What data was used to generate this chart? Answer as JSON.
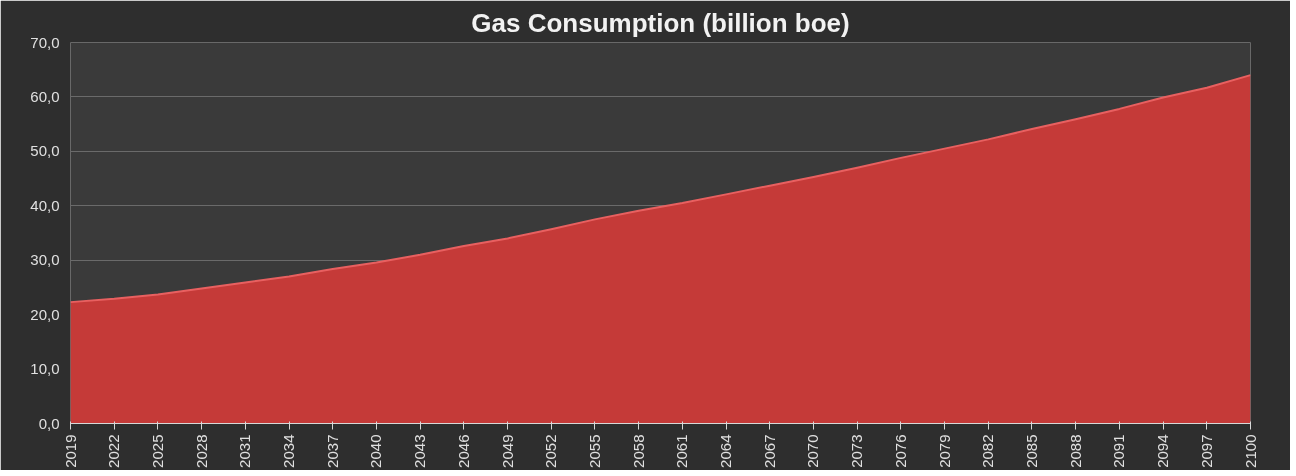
{
  "chart_data": {
    "type": "area",
    "title": "Gas Consumption (billion boe)",
    "x": [
      2019,
      2022,
      2025,
      2028,
      2031,
      2034,
      2037,
      2040,
      2043,
      2046,
      2049,
      2052,
      2055,
      2058,
      2061,
      2064,
      2067,
      2070,
      2073,
      2076,
      2079,
      2082,
      2085,
      2088,
      2091,
      2094,
      2097,
      2100
    ],
    "series": [
      {
        "color": "#c53a38",
        "values": [
          22.3,
          22.9,
          23.7,
          24.8,
          25.9,
          27.0,
          28.4,
          29.6,
          31.0,
          32.6,
          34.0,
          35.7,
          37.5,
          39.1,
          40.5,
          42.1,
          43.7,
          45.3,
          47.0,
          48.8,
          50.5,
          52.2,
          54.1,
          55.9,
          57.8,
          59.9,
          61.7,
          64.0
        ]
      }
    ],
    "xlim": [
      2019,
      2100
    ],
    "xticks": [
      2019,
      2022,
      2025,
      2028,
      2031,
      2034,
      2037,
      2040,
      2043,
      2046,
      2049,
      2052,
      2055,
      2058,
      2061,
      2064,
      2067,
      2070,
      2073,
      2076,
      2079,
      2082,
      2085,
      2088,
      2091,
      2094,
      2097,
      2100
    ],
    "ylim": [
      0,
      70
    ],
    "yticks": [
      {
        "value": 0,
        "label": "0,0"
      },
      {
        "value": 10,
        "label": "10,0"
      },
      {
        "value": 20,
        "label": "20,0"
      },
      {
        "value": 30,
        "label": "30,0"
      },
      {
        "value": 40,
        "label": "40,0"
      },
      {
        "value": 50,
        "label": "50,0"
      },
      {
        "value": 60,
        "label": "60,0"
      },
      {
        "value": 70,
        "label": "70,0"
      }
    ],
    "grid": "y"
  }
}
